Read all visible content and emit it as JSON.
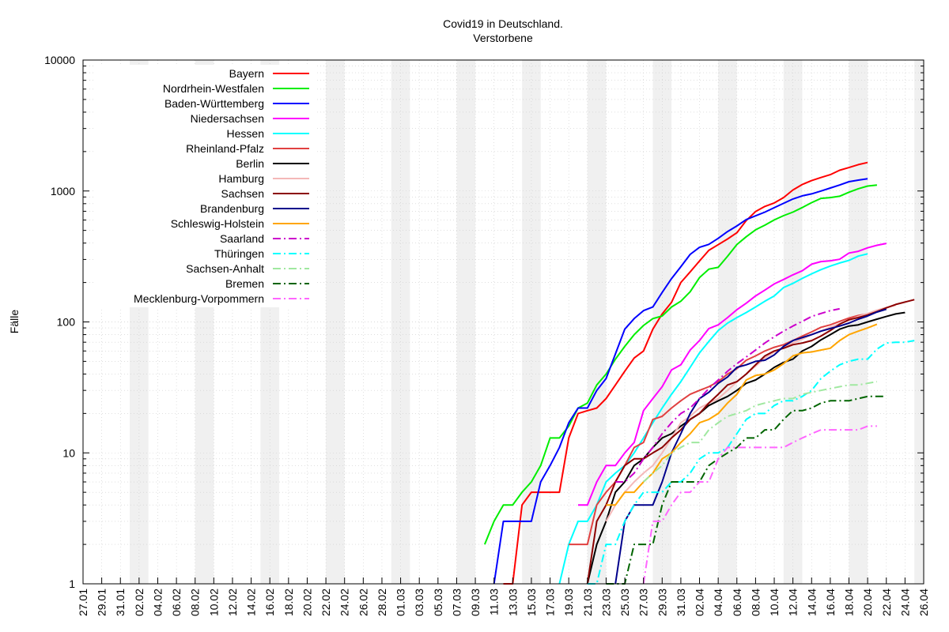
{
  "chart_data": {
    "type": "line",
    "title": "Covid19 in Deutschland.",
    "subtitle": "Verstorbene",
    "xlabel": "",
    "ylabel": "Fälle",
    "yscale": "log",
    "ylim": [
      1,
      10000
    ],
    "xlim": [
      "27.01",
      "26.04"
    ],
    "legend_position": "top-left",
    "grid": true,
    "weekend_shading": true,
    "y_ticks": [
      "1",
      "10",
      "100",
      "1000",
      "10000"
    ],
    "x_ticks": [
      "27.01",
      "29.01",
      "31.01",
      "02.02",
      "04.02",
      "06.02",
      "08.02",
      "10.02",
      "12.02",
      "14.02",
      "16.02",
      "18.02",
      "20.02",
      "22.02",
      "24.02",
      "26.02",
      "28.02",
      "01.03",
      "03.03",
      "05.03",
      "07.03",
      "09.03",
      "11.03",
      "13.03",
      "15.03",
      "17.03",
      "19.03",
      "21.03",
      "23.03",
      "25.03",
      "27.03",
      "29.03",
      "31.03",
      "02.04",
      "04.04",
      "06.04",
      "08.04",
      "10.04",
      "12.04",
      "14.04",
      "16.04",
      "18.04",
      "20.04",
      "22.04",
      "24.04",
      "26.04"
    ],
    "series": [
      {
        "name": "Bayern",
        "color": "#ff0000",
        "dash": "solid",
        "start_day": 45,
        "values": [
          1,
          1,
          4,
          5,
          5,
          5,
          5,
          13,
          20,
          21,
          22,
          26,
          33,
          42,
          53,
          60,
          88,
          115,
          141,
          200,
          241,
          292,
          352,
          389,
          430,
          480,
          594,
          696,
          762,
          810,
          891,
          1018,
          1122,
          1201,
          1267,
          1332,
          1440,
          1510,
          1590,
          1650
        ]
      },
      {
        "name": "Nordrhein-Westfalen",
        "color": "#00ee00",
        "dash": "solid",
        "start_day": 43,
        "values": [
          2,
          3,
          4,
          4,
          5,
          6,
          8,
          13,
          13,
          16,
          22,
          24,
          33,
          40,
          52,
          65,
          80,
          94,
          106,
          111,
          130,
          144,
          170,
          218,
          253,
          261,
          317,
          390,
          447,
          505,
          548,
          601,
          648,
          690,
          748,
          815,
          878,
          890,
          912,
          979,
          1040,
          1090,
          1110
        ]
      },
      {
        "name": "Baden-Württemberg",
        "color": "#0000ff",
        "dash": "solid",
        "start_day": 44,
        "values": [
          1,
          3,
          3,
          3,
          3,
          6,
          8,
          11,
          17,
          22,
          22,
          30,
          37,
          57,
          88,
          106,
          122,
          130,
          168,
          214,
          264,
          328,
          371,
          391,
          435,
          490,
          541,
          605,
          646,
          690,
          745,
          805,
          868,
          918,
          950,
          1000,
          1053,
          1110,
          1178,
          1210,
          1240
        ]
      },
      {
        "name": "Niedersachsen",
        "color": "#ff00ff",
        "dash": "solid",
        "start_day": 53,
        "values": [
          4,
          4,
          6,
          8,
          8,
          10,
          12,
          21,
          26,
          32,
          43,
          47,
          61,
          72,
          89,
          95,
          108,
          124,
          139,
          158,
          175,
          195,
          211,
          229,
          246,
          276,
          289,
          293,
          301,
          336,
          346,
          368,
          385,
          398
        ]
      },
      {
        "name": "Hessen",
        "color": "#00ffff",
        "dash": "solid",
        "start_day": 51,
        "values": [
          1,
          2,
          3,
          3,
          4,
          6,
          7,
          8,
          10,
          13,
          17,
          22,
          28,
          35,
          45,
          58,
          71,
          86,
          98,
          108,
          118,
          130,
          144,
          158,
          183,
          197,
          215,
          233,
          251,
          267,
          282,
          295,
          318,
          331
        ]
      },
      {
        "name": "Rheinland-Pfalz",
        "color": "#e04040",
        "dash": "solid",
        "start_day": 52,
        "values": [
          2,
          2,
          2,
          4,
          5,
          6,
          8,
          11,
          12,
          18,
          19,
          22,
          25,
          28,
          30,
          32,
          35,
          40,
          44,
          51,
          55,
          60,
          64,
          67,
          72,
          78,
          84,
          91,
          95,
          101,
          107,
          112,
          115,
          122,
          128
        ]
      },
      {
        "name": "Berlin",
        "color": "#000000",
        "dash": "solid",
        "start_day": 54,
        "values": [
          1,
          2,
          3,
          5,
          6,
          8,
          9,
          11,
          13,
          14,
          16,
          18,
          20,
          23,
          25,
          27,
          30,
          34,
          36,
          40,
          45,
          49,
          52,
          60,
          65,
          73,
          80,
          88,
          93,
          95,
          100,
          105,
          110,
          115,
          118
        ]
      },
      {
        "name": "Hamburg",
        "color": "#f4b8b8",
        "dash": "solid",
        "start_day": 56,
        "values": [
          3,
          4,
          5,
          6,
          7,
          8,
          10,
          13,
          17,
          19,
          22,
          24,
          26,
          30,
          35,
          40,
          46,
          53,
          59,
          64,
          69,
          74,
          80,
          85,
          91,
          97,
          103,
          110,
          116,
          123,
          129,
          134
        ]
      },
      {
        "name": "Sachsen",
        "color": "#8b0000",
        "dash": "solid",
        "start_day": 54,
        "values": [
          1,
          3,
          4,
          6,
          8,
          9,
          9,
          10,
          11,
          13,
          15,
          18,
          20,
          24,
          28,
          33,
          35,
          40,
          47,
          55,
          60,
          63,
          67,
          69,
          72,
          78,
          86,
          96,
          104,
          108,
          113,
          120,
          128,
          136,
          142,
          148
        ]
      },
      {
        "name": "Brandenburg",
        "color": "#00008b",
        "dash": "solid",
        "start_day": 57,
        "values": [
          1,
          3,
          4,
          4,
          4,
          6,
          10,
          14,
          20,
          26,
          29,
          34,
          38,
          45,
          47,
          50,
          51,
          56,
          65,
          72,
          76,
          80,
          85,
          89,
          93,
          98,
          105,
          111,
          119,
          125
        ]
      },
      {
        "name": "Schleswig-Holstein",
        "color": "#ffa500",
        "dash": "solid",
        "start_day": 56,
        "values": [
          4,
          4,
          5,
          5,
          6,
          7,
          9,
          10,
          12,
          14,
          17,
          18,
          20,
          24,
          28,
          36,
          39,
          40,
          43,
          48,
          55,
          58,
          59,
          61,
          63,
          72,
          80,
          85,
          90,
          96
        ]
      },
      {
        "name": "Saarland",
        "color": "#cc00cc",
        "dash": "dashdot",
        "start_day": 57,
        "values": [
          6,
          6,
          7,
          9,
          11,
          14,
          17,
          20,
          22,
          26,
          31,
          36,
          42,
          48,
          54,
          61,
          69,
          77,
          85,
          93,
          101,
          110,
          116,
          122,
          126
        ]
      },
      {
        "name": "Thüringen",
        "color": "#00ffff",
        "dash": "dashdot",
        "start_day": 54,
        "values": [
          1,
          1,
          2,
          2,
          3,
          4,
          5,
          5,
          5,
          6,
          6,
          7,
          9,
          10,
          10,
          11,
          14,
          18,
          20,
          20,
          23,
          25,
          25,
          27,
          30,
          37,
          42,
          47,
          50,
          52,
          52,
          62,
          69,
          70,
          70,
          72
        ]
      },
      {
        "name": "Sachsen-Anhalt",
        "color": "#a0e8a0",
        "dash": "dashdot",
        "start_day": 60,
        "values": [
          6,
          7,
          8,
          10,
          11,
          12,
          12,
          15,
          17,
          19,
          20,
          21,
          23,
          24,
          25,
          26,
          26,
          28,
          29,
          30,
          31,
          32,
          33,
          33,
          34,
          35
        ]
      },
      {
        "name": "Bremen",
        "color": "#006400",
        "dash": "dashdot",
        "start_day": 56,
        "values": [
          1,
          1,
          1,
          2,
          2,
          2,
          4,
          6,
          6,
          6,
          6,
          8,
          9,
          10,
          11,
          13,
          13,
          15,
          15,
          18,
          21,
          21,
          22,
          24,
          25,
          25,
          25,
          26,
          27,
          27,
          27
        ]
      },
      {
        "name": "Mecklenburg-Vorpommern",
        "color": "#ff66ff",
        "dash": "dashdot",
        "start_day": 60,
        "values": [
          1,
          3,
          3,
          4,
          5,
          5,
          6,
          6,
          9,
          11,
          11,
          11,
          11,
          11,
          11,
          11,
          12,
          13,
          14,
          15,
          15,
          15,
          15,
          15,
          16,
          16
        ]
      }
    ]
  }
}
